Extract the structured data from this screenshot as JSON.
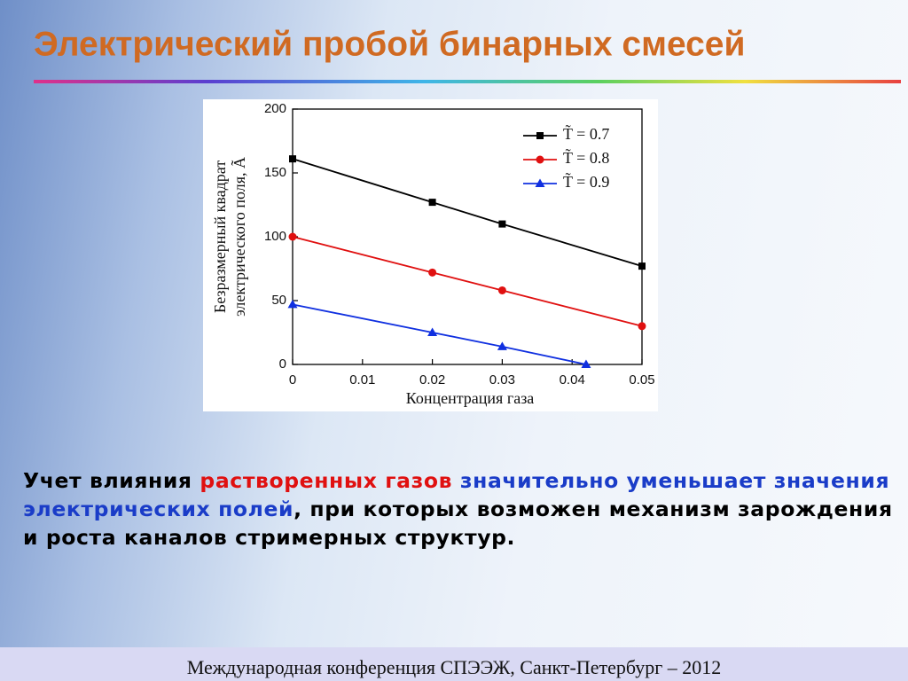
{
  "slide": {
    "title": "Электрический пробой бинарных смесей",
    "body": [
      {
        "text": "Учет влияния ",
        "color": "#000000"
      },
      {
        "text": "растворенных газов",
        "color": "#e01010"
      },
      {
        "text": " значительно уменьшает значения электрических полей",
        "color": "#1a3cc8"
      },
      {
        "text": ", при которых возможен механизм зарождения и роста каналов стримерных структур.",
        "color": "#000000"
      }
    ],
    "footer": "Международная конференция СПЭЭЖ, Санкт-Петербург – 2012"
  },
  "chart_data": {
    "type": "line",
    "xlabel": "Концентрация газа",
    "ylabel": [
      "Безразмерный квадрат",
      "электрического поля, Ã"
    ],
    "xlim": [
      0,
      0.05
    ],
    "ylim": [
      0,
      200
    ],
    "xticks": [
      0,
      0.01,
      0.02,
      0.03,
      0.04,
      0.05
    ],
    "yticks": [
      0,
      50,
      100,
      150,
      200
    ],
    "legend": "upper right",
    "series": [
      {
        "name": "T̃ = 0.7",
        "color": "#000000",
        "marker": "square",
        "x": [
          0,
          0.02,
          0.03,
          0.05
        ],
        "values": [
          161,
          127,
          110,
          77
        ]
      },
      {
        "name": "T̃ = 0.8",
        "color": "#e01010",
        "marker": "circle",
        "x": [
          0,
          0.02,
          0.03,
          0.05
        ],
        "values": [
          100,
          72,
          58,
          30
        ]
      },
      {
        "name": "T̃ = 0.9",
        "color": "#1030e0",
        "marker": "triangle",
        "x": [
          0,
          0.02,
          0.03,
          0.042
        ],
        "values": [
          47,
          25,
          14,
          0
        ]
      }
    ]
  }
}
